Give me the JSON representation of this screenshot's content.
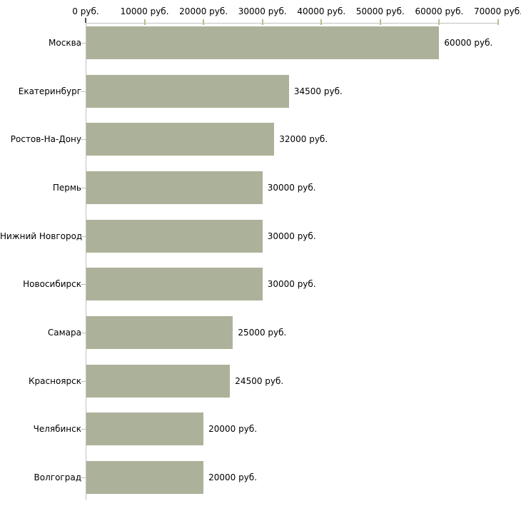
{
  "chart_data": {
    "type": "bar",
    "orientation": "horizontal",
    "title": "",
    "categories": [
      "Москва",
      "Екатеринбург",
      "Ростов-На-Дону",
      "Пермь",
      "Нижний Новгород",
      "Новосибирск",
      "Самара",
      "Красноярск",
      "Челябинск",
      "Волгоград"
    ],
    "values": [
      60000,
      34500,
      32000,
      30000,
      30000,
      30000,
      25000,
      24500,
      20000,
      20000
    ],
    "bar_labels": [
      "60000 руб.",
      "34500 руб.",
      "32000 руб.",
      "30000 руб.",
      "30000 руб.",
      "30000 руб.",
      "25000 руб.",
      "24500 руб.",
      "20000 руб.",
      "20000 руб."
    ],
    "x_axis": {
      "position": "top",
      "min": 0,
      "max": 70000,
      "tick_step": 10000,
      "unit": "руб.",
      "tick_labels": [
        "0 руб.",
        "10000 руб.",
        "20000 руб.",
        "30000 руб.",
        "40000 руб.",
        "50000 руб.",
        "60000 руб.",
        "70000 руб."
      ]
    },
    "y_axis": {
      "position": "left"
    },
    "legend": "none",
    "grid": false,
    "colors": {
      "bar": "#abb299",
      "axis_line": "#c0c0c0",
      "axis_tick": "#bdbd8f",
      "zero_tick": "#4d4d4d",
      "category_tick": "#c2c2a3",
      "text": "#000000",
      "background": "#ffffff"
    }
  }
}
